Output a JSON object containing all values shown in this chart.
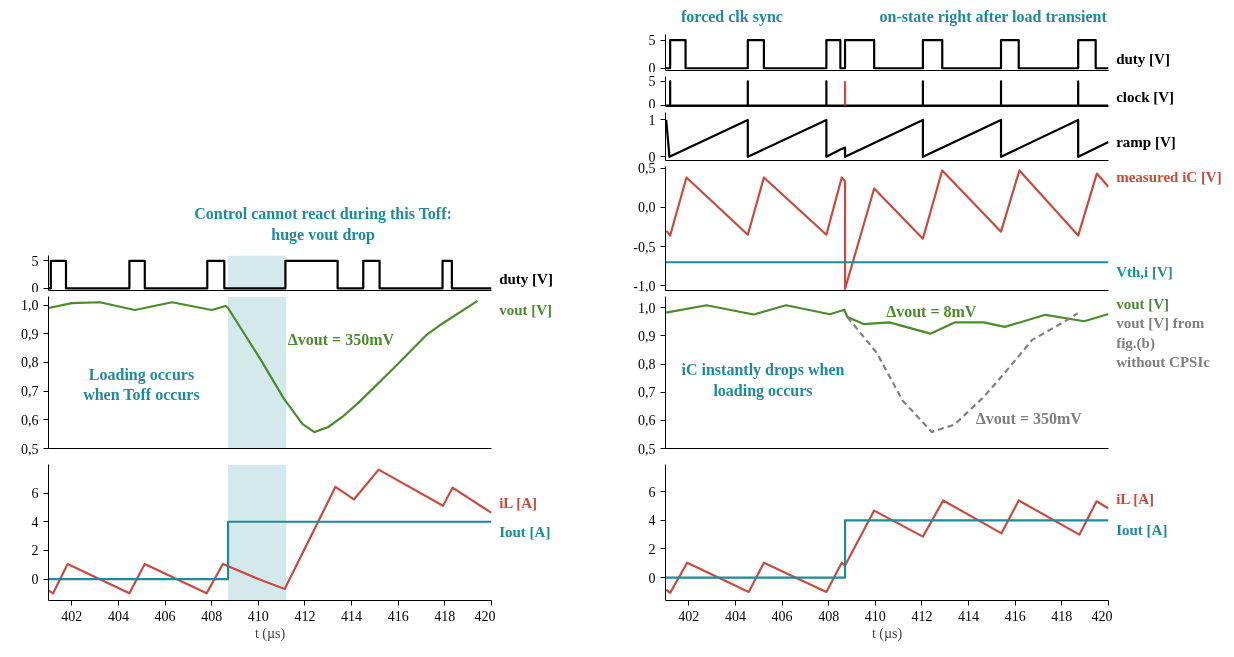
{
  "chart_data": [
    {
      "type": "step",
      "xlim": [
        401,
        420
      ],
      "ylim": [
        -0.4,
        6
      ],
      "yticks": [
        0,
        5
      ],
      "tick_labels": "y",
      "annotations": [
        "Control cannot react during this Toff: huge vout drop"
      ],
      "bands": [
        {
          "axis": "x",
          "from": 408.7,
          "to": 411.2,
          "color": "#d3e9ec"
        }
      ],
      "series": [
        {
          "name": "duty [V]",
          "color": "#000000",
          "x": [
            401,
            401.1,
            401.75,
            404.47,
            405.13,
            407.81,
            408.54,
            411.16,
            413.4,
            414.5,
            415.2,
            417.9,
            418.3,
            420
          ],
          "values": [
            0,
            5,
            0,
            5,
            0,
            5,
            0,
            5,
            0,
            5,
            0,
            5,
            0,
            0
          ]
        }
      ]
    },
    {
      "type": "line",
      "xlim": [
        401,
        420
      ],
      "ylim": [
        0.5,
        1.03
      ],
      "tick_labels": "y",
      "yticks": [
        {
          "value": 0.5,
          "label": "0,5"
        },
        {
          "value": 0.6,
          "label": "0,6"
        },
        {
          "value": 0.7,
          "label": "0,7"
        },
        {
          "value": 0.8,
          "label": "0,8"
        },
        {
          "value": 0.9,
          "label": "0,9"
        },
        {
          "value": 1.0,
          "label": "1,0"
        }
      ],
      "annotations": [
        "Δvout = 350mV",
        "Loading occurs when Toff occurs"
      ],
      "bands": [
        {
          "axis": "x",
          "from": 408.7,
          "to": 411.2,
          "color": "#d3e9ec"
        }
      ],
      "series": [
        {
          "name": "vout [V]",
          "color": "#4b8b2b",
          "x": [
            401.0,
            402.0,
            403.2,
            404.7,
            406.3,
            408.0,
            408.6,
            408.7,
            410.1,
            411.1,
            411.9,
            412.4,
            413.0,
            413.6,
            414.3,
            415.8,
            417.2,
            417.9,
            419.4
          ],
          "values": [
            0.99,
            1.007,
            1.01,
            0.983,
            1.01,
            0.983,
            0.997,
            0.99,
            0.81,
            0.673,
            0.585,
            0.557,
            0.575,
            0.61,
            0.66,
            0.78,
            0.895,
            0.936,
            1.015
          ]
        }
      ]
    },
    {
      "type": "line",
      "xlim": [
        401,
        420
      ],
      "ylim": [
        -1.5,
        8
      ],
      "xticks": [
        402,
        404,
        406,
        408,
        410,
        412,
        414,
        416,
        418,
        420
      ],
      "yticks": [
        0,
        2,
        4,
        6
      ],
      "xlabel": "t (µs)",
      "bands": [
        {
          "axis": "x",
          "from": 408.7,
          "to": 411.2,
          "color": "#d3e9ec"
        }
      ],
      "series": [
        {
          "name": "iL [A]",
          "color": "#c94a3f",
          "x": [
            401.0,
            401.2,
            401.82,
            404.47,
            405.13,
            407.78,
            408.48,
            410.0,
            411.13,
            413.31,
            414.1,
            415.16,
            417.92,
            418.33,
            420
          ],
          "values": [
            -0.8,
            -1.0,
            1.05,
            -1.0,
            1.05,
            -1.0,
            1.05,
            0.0,
            -0.7,
            6.44,
            5.56,
            7.64,
            5.12,
            6.38,
            4.62
          ]
        },
        {
          "name": "Iout [A]",
          "type": "step",
          "color": "#1e8a9b",
          "x": [
            401,
            408.7,
            420
          ],
          "values": [
            0,
            4,
            4
          ]
        }
      ]
    },
    {
      "type": "step",
      "xlim": [
        401,
        420
      ],
      "ylim": [
        -0.4,
        6
      ],
      "yticks": [
        0,
        5
      ],
      "tick_labels": "y",
      "annotations": [
        "forced clk sync",
        "on-state right after load transient"
      ],
      "series": [
        {
          "name": "duty [V]",
          "color": "#000000",
          "x": [
            401,
            401.2,
            401.86,
            404.53,
            405.22,
            407.9,
            408.5,
            408.7,
            409.95,
            412.04,
            412.87,
            415.39,
            416.15,
            418.7,
            419.45,
            420
          ],
          "values": [
            0,
            5,
            0,
            5,
            0,
            5,
            0,
            5,
            0,
            5,
            0,
            5,
            0,
            5,
            0,
            0
          ]
        }
      ]
    },
    {
      "type": "line",
      "xlim": [
        401,
        420
      ],
      "ylim": [
        -0.2,
        6
      ],
      "yticks": [
        0,
        5
      ],
      "tick_labels": "y",
      "series": [
        {
          "name": "clock [V]",
          "color": "#000000",
          "x": [
            401,
            401.2,
            401.2,
            401.2,
            404.53,
            404.53,
            404.53,
            407.9,
            407.9,
            407.9,
            412.04,
            412.04,
            412.04,
            415.39,
            415.39,
            415.39,
            418.7,
            418.7,
            418.7,
            420
          ],
          "values": [
            0,
            0,
            5,
            0,
            0,
            5,
            0,
            0,
            5,
            0,
            0,
            5,
            0,
            0,
            5,
            0,
            0,
            5,
            0,
            0
          ]
        },
        {
          "color": "#c94a3f",
          "x": [
            408.7,
            408.7
          ],
          "values": [
            0,
            5
          ]
        }
      ]
    },
    {
      "type": "line",
      "xlim": [
        401,
        420
      ],
      "ylim": [
        -0.1,
        1.2
      ],
      "yticks": [
        0,
        1
      ],
      "tick_labels": "y",
      "series": [
        {
          "name": "ramp [V]",
          "color": "#000000",
          "x": [
            401.03,
            401.17,
            404.53,
            404.53,
            407.9,
            407.9,
            408.5,
            408.7,
            408.7,
            412.04,
            412.04,
            415.39,
            415.39,
            418.7,
            418.7,
            420
          ],
          "values": [
            1,
            0,
            1,
            0,
            1,
            0,
            0.2,
            0.25,
            0,
            1,
            0,
            1,
            0,
            1,
            0,
            0.4
          ]
        }
      ]
    },
    {
      "type": "line",
      "xlim": [
        401,
        420
      ],
      "ylim": [
        -1.06,
        0.52
      ],
      "tick_labels": "y",
      "yticks": [
        {
          "value": -1.0,
          "label": "-1,0"
        },
        {
          "value": -0.5,
          "label": "-0,5"
        },
        {
          "value": 0,
          "label": "0,0"
        },
        {
          "value": 0.5,
          "label": "0,5"
        }
      ],
      "series": [
        {
          "name": "measured iC [V]",
          "color": "#c94a3f",
          "x": [
            401.05,
            401.2,
            401.9,
            404.53,
            405.22,
            407.9,
            408.56,
            408.7,
            408.7,
            409.95,
            412.04,
            412.87,
            415.39,
            416.18,
            418.7,
            419.5,
            420
          ],
          "values": [
            -0.3,
            -0.36,
            0.38,
            -0.35,
            0.38,
            -0.35,
            0.38,
            0.33,
            -1.04,
            0.24,
            -0.4,
            0.47,
            -0.31,
            0.47,
            -0.36,
            0.43,
            0.26
          ]
        },
        {
          "name": "Vth,i [V]",
          "color": "#1e8a9b",
          "x": [
            401,
            420
          ],
          "values": [
            -0.7,
            -0.7
          ]
        }
      ]
    },
    {
      "type": "line",
      "xlim": [
        401,
        420
      ],
      "ylim": [
        0.5,
        1.04
      ],
      "tick_labels": "y",
      "yticks": [
        {
          "value": 0.5,
          "label": "0,5"
        },
        {
          "value": 0.6,
          "label": "0,6"
        },
        {
          "value": 0.7,
          "label": "0,7"
        },
        {
          "value": 0.8,
          "label": "0,8"
        },
        {
          "value": 0.9,
          "label": "0,9"
        },
        {
          "value": 1.0,
          "label": "1,0"
        }
      ],
      "annotations": [
        "Δvout = 8mV",
        "Δvout = 350mV",
        "iC instantly drops when loading occurs"
      ],
      "series": [
        {
          "name": "vout [V]",
          "color": "#4b8b2b",
          "x": [
            401.03,
            402.76,
            404.78,
            406.17,
            408.05,
            408.67,
            408.8,
            409.5,
            410.6,
            412.36,
            413.4,
            414.65,
            415.55,
            417.29,
            418.96,
            420
          ],
          "values": [
            0.983,
            1.009,
            0.976,
            1.009,
            0.977,
            0.993,
            0.967,
            0.942,
            0.948,
            0.908,
            0.948,
            0.948,
            0.932,
            0.975,
            0.952,
            0.978
          ]
        },
        {
          "name": "vout [V] from fig.(b) without CPSIc",
          "color": "#808080",
          "line_style": "dashed",
          "x": [
            408.8,
            410.06,
            411.17,
            412.42,
            413.4,
            414.65,
            415.48,
            416.73,
            417.99,
            418.68
          ],
          "values": [
            0.967,
            0.84,
            0.67,
            0.559,
            0.585,
            0.683,
            0.762,
            0.886,
            0.945,
            0.98
          ]
        }
      ]
    },
    {
      "type": "line",
      "xlim": [
        401,
        420
      ],
      "ylim": [
        -1.6,
        7.9
      ],
      "xticks": [
        402,
        404,
        406,
        408,
        410,
        412,
        414,
        416,
        418,
        420
      ],
      "yticks": [
        0,
        2,
        4,
        6
      ],
      "xlabel": "t (µs)",
      "series": [
        {
          "name": "iL [A]",
          "color": "#c94a3f",
          "x": [
            401.03,
            401.2,
            401.93,
            404.57,
            405.22,
            407.9,
            408.56,
            408.7,
            409.95,
            412.04,
            412.91,
            415.41,
            416.15,
            418.75,
            419.49,
            420
          ],
          "values": [
            -0.84,
            -1.07,
            1.04,
            -1.0,
            1.04,
            -1.0,
            1.04,
            0.84,
            4.68,
            2.86,
            5.39,
            3.09,
            5.39,
            3.0,
            5.33,
            4.82
          ]
        },
        {
          "name": "Iout [A]",
          "type": "step",
          "color": "#1e8a9b",
          "x": [
            401,
            408.7,
            420
          ],
          "values": [
            0,
            4,
            4
          ]
        }
      ]
    }
  ]
}
